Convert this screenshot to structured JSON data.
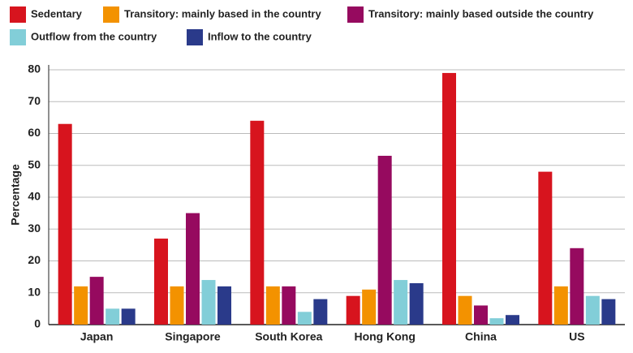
{
  "chart_data": {
    "type": "bar",
    "y_label": "Percentage",
    "categories": [
      "Japan",
      "Singapore",
      "South Korea",
      "Hong Kong",
      "China",
      "US"
    ],
    "series": [
      {
        "name": "Sedentary",
        "color": "#d7141e",
        "values": [
          63,
          27,
          64,
          9,
          79,
          48
        ]
      },
      {
        "name": "Transitory: mainly based in the country",
        "color": "#f39200",
        "values": [
          12,
          12,
          12,
          11,
          9,
          12
        ]
      },
      {
        "name": "Transitory: mainly based outside the country",
        "color": "#960a5f",
        "values": [
          15,
          35,
          12,
          53,
          6,
          24
        ]
      },
      {
        "name": "Outflow from the country",
        "color": "#82ced8",
        "values": [
          5,
          14,
          4,
          14,
          2,
          9
        ]
      },
      {
        "name": "Inflow to the country",
        "color": "#2a3a8a",
        "values": [
          5,
          12,
          8,
          13,
          3,
          8
        ]
      }
    ],
    "ylim": [
      0,
      80
    ],
    "yticks": [
      0,
      10,
      20,
      30,
      40,
      50,
      60,
      70,
      80
    ],
    "grid": true
  }
}
